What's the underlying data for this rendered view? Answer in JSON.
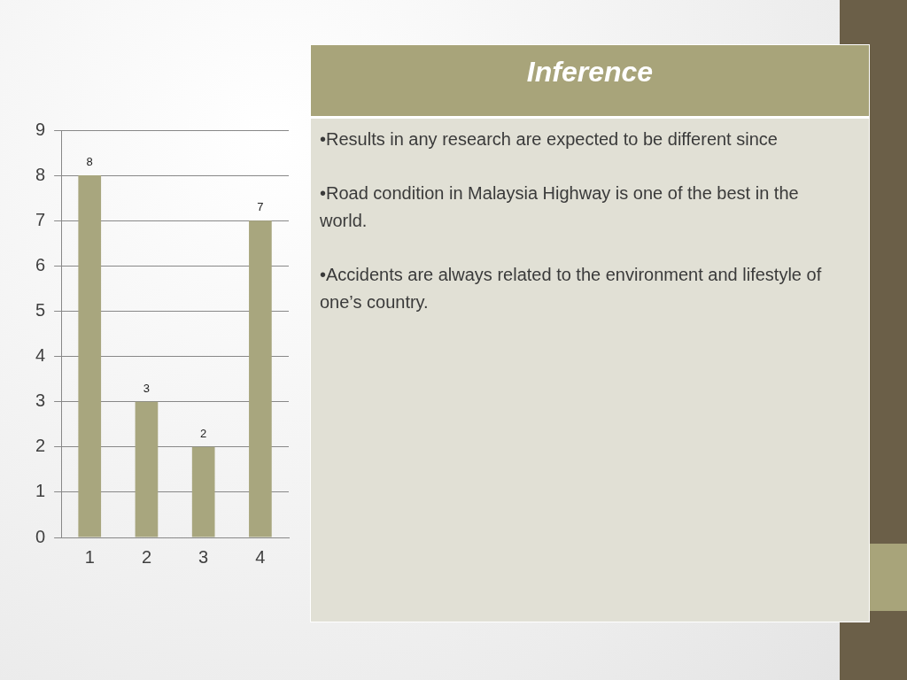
{
  "chart_data": [
    {
      "type": "bar",
      "categories": [
        "1",
        "2",
        "3",
        "4"
      ],
      "values": [
        8,
        3,
        2,
        7
      ],
      "color": "#a8a67e",
      "ylim": [
        0,
        9
      ],
      "yticks": [
        0,
        1,
        2,
        3,
        4,
        5,
        6,
        7,
        8,
        9
      ],
      "grid": "y",
      "data_labels": true,
      "legend": false
    },
    {
      "type": "other",
      "title": "Inference",
      "annotations": [
        "•Results in any research are expected to be different since",
        "•Road condition in Malaysia Highway is one of the best in the world.",
        "•Accidents are always related to the environment and lifestyle of one’s country."
      ]
    }
  ]
}
